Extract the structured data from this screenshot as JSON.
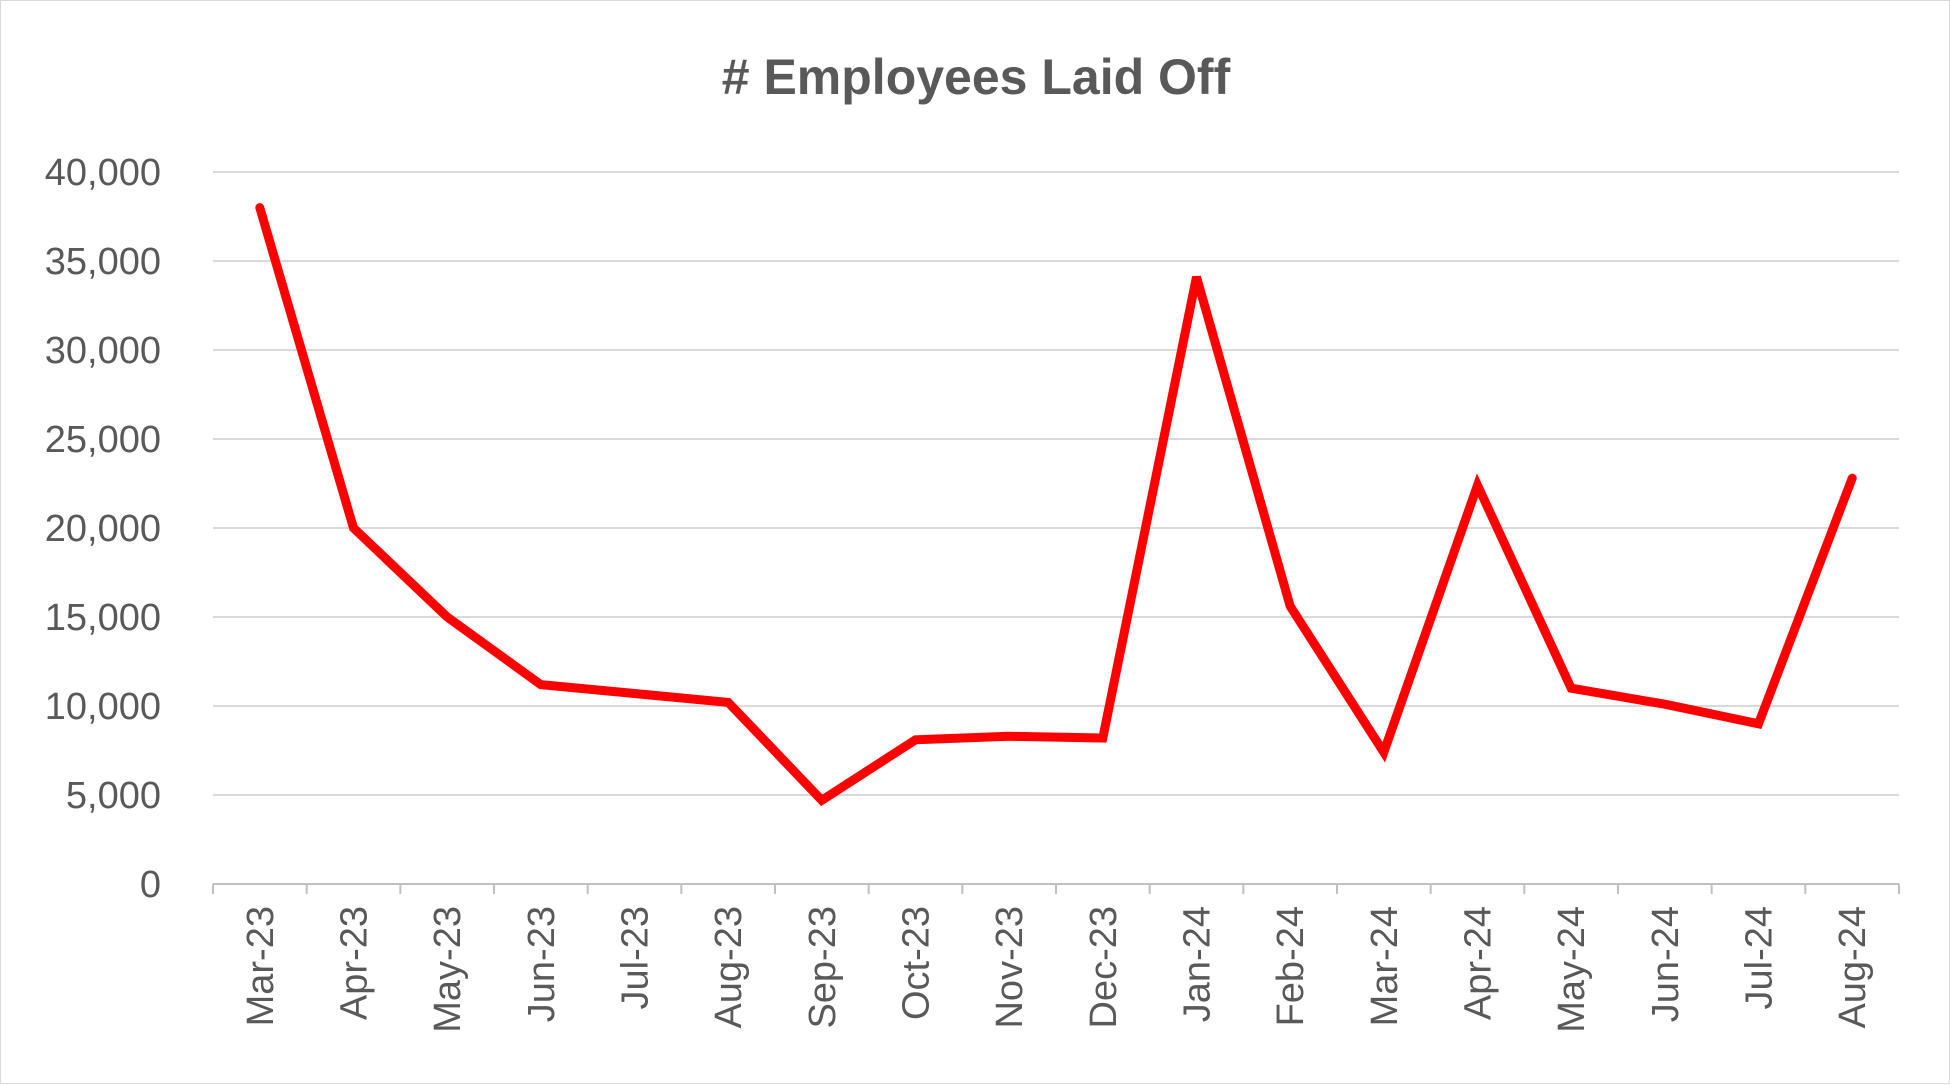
{
  "chart_data": {
    "type": "line",
    "title": "# Employees Laid Off",
    "categories": [
      "Mar-23",
      "Apr-23",
      "May-23",
      "Jun-23",
      "Jul-23",
      "Aug-23",
      "Sep-23",
      "Oct-23",
      "Nov-23",
      "Dec-23",
      "Jan-24",
      "Feb-24",
      "Mar-24",
      "Apr-24",
      "May-24",
      "Jun-24",
      "Jul-24",
      "Aug-24"
    ],
    "series": [
      {
        "values": [
          38000,
          20000,
          15000,
          11200,
          10700,
          10200,
          4700,
          8100,
          8300,
          8200,
          34100,
          15600,
          7400,
          22400,
          11000,
          10100,
          9000,
          22800
        ],
        "color": "#ff0000"
      }
    ],
    "yticks": [
      "0",
      "5,000",
      "10,000",
      "15,000",
      "20,000",
      "25,000",
      "30,000",
      "35,000",
      "40,000"
    ],
    "ylim": [
      0,
      40000
    ],
    "ystep": 5000,
    "xlabel": "",
    "ylabel": "",
    "grid": true,
    "legend": "none"
  }
}
